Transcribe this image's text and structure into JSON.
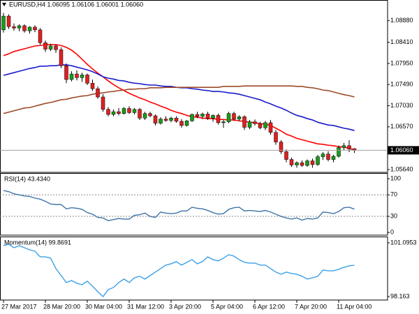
{
  "chart_data": [
    {
      "type": "candlestick",
      "title": "EURUSD,H4  1.06095 1.06106 1.06001 1.06060",
      "categories": [
        "27 Mar 2017",
        null,
        null,
        null,
        null,
        null,
        null,
        null,
        "28 Mar 20:00",
        null,
        null,
        null,
        null,
        null,
        null,
        null,
        "30 Mar 04:00",
        null,
        null,
        null,
        null,
        null,
        null,
        null,
        "31 Mar 12:00",
        null,
        null,
        null,
        null,
        null,
        null,
        null,
        "3 Apr 20:00",
        null,
        null,
        null,
        null,
        null,
        null,
        null,
        "5 Apr 04:00",
        null,
        null,
        null,
        null,
        null,
        null,
        null,
        "6 Apr 12:00",
        null,
        null,
        null,
        null,
        null,
        null,
        null,
        "7 Apr 20:00",
        null,
        null,
        null,
        null,
        null,
        null,
        null,
        "11 Apr 04:00",
        null,
        null,
        null
      ],
      "open": [
        1.0868,
        1.0898,
        1.0875,
        1.0872,
        1.0877,
        1.0866,
        1.0874,
        1.0868,
        1.084,
        1.0826,
        1.0833,
        1.0825,
        1.079,
        1.076,
        1.0772,
        1.0764,
        1.077,
        1.0752,
        1.074,
        1.0722,
        1.0695,
        1.0684,
        1.069,
        1.0686,
        1.0697,
        1.0688,
        1.0695,
        1.0676,
        1.0686,
        1.0681,
        1.0665,
        1.0674,
        1.0671,
        1.0676,
        1.0669,
        1.066,
        1.067,
        1.0684,
        1.068,
        1.0685,
        1.0676,
        1.0682,
        1.0666,
        1.0668,
        1.0686,
        1.0674,
        1.0679,
        1.0656,
        1.0668,
        1.0664,
        1.0655,
        1.0666,
        1.0645,
        1.0624,
        1.0603,
        1.0586,
        1.0574,
        1.0579,
        1.0573,
        1.0583,
        1.0575,
        1.0592,
        1.0598,
        1.0586,
        1.0593,
        1.0612,
        1.0616,
        1.06095
      ],
      "high": [
        1.0905,
        1.0902,
        1.0882,
        1.088,
        1.088,
        1.0876,
        1.0878,
        1.0872,
        1.0845,
        1.0838,
        1.0836,
        1.083,
        1.0795,
        1.0778,
        1.078,
        1.0775,
        1.0773,
        1.076,
        1.0745,
        1.0728,
        1.07,
        1.0695,
        1.0698,
        1.07,
        1.0702,
        1.0698,
        1.0698,
        1.069,
        1.069,
        1.0684,
        1.0678,
        1.068,
        1.0679,
        1.068,
        1.0674,
        1.0672,
        1.0686,
        1.069,
        1.0688,
        1.069,
        1.0684,
        1.0686,
        1.0672,
        1.069,
        1.069,
        1.0682,
        1.0682,
        1.0672,
        1.0673,
        1.0668,
        1.067,
        1.0672,
        1.065,
        1.0628,
        1.0608,
        1.059,
        1.0582,
        1.0584,
        1.0586,
        1.0588,
        1.0596,
        1.0602,
        1.0604,
        1.0596,
        1.0616,
        1.0622,
        1.0628,
        1.06106
      ],
      "low": [
        1.0862,
        1.087,
        1.0866,
        1.0865,
        1.0862,
        1.086,
        1.0863,
        1.0836,
        1.082,
        1.0822,
        1.0818,
        1.0785,
        1.0752,
        1.0756,
        1.0758,
        1.0755,
        1.0748,
        1.0735,
        1.0718,
        1.069,
        1.068,
        1.068,
        1.0682,
        1.0684,
        1.0685,
        1.0684,
        1.0672,
        1.0672,
        1.0678,
        1.066,
        1.0662,
        1.0668,
        1.0667,
        1.0666,
        1.0655,
        1.0658,
        1.0668,
        1.0676,
        1.0674,
        1.0672,
        1.0668,
        1.0662,
        1.0655,
        1.0665,
        1.067,
        1.067,
        1.065,
        1.0652,
        1.066,
        1.0652,
        1.065,
        1.064,
        1.0618,
        1.0598,
        1.058,
        1.057,
        1.0568,
        1.057,
        1.057,
        1.0568,
        1.0572,
        1.0585,
        1.0582,
        1.058,
        1.059,
        1.0606,
        1.0602,
        1.06001
      ],
      "close": [
        1.0898,
        1.0875,
        1.0872,
        1.0877,
        1.0866,
        1.0874,
        1.0868,
        1.084,
        1.0826,
        1.0833,
        1.0825,
        1.079,
        1.076,
        1.0772,
        1.0764,
        1.077,
        1.0752,
        1.074,
        1.0722,
        1.0695,
        1.0684,
        1.069,
        1.0686,
        1.0697,
        1.0688,
        1.0695,
        1.0676,
        1.0686,
        1.0681,
        1.0665,
        1.0674,
        1.0671,
        1.0676,
        1.0669,
        1.066,
        1.067,
        1.0684,
        1.068,
        1.0685,
        1.0676,
        1.0682,
        1.0666,
        1.0668,
        1.0686,
        1.0674,
        1.0679,
        1.0656,
        1.0668,
        1.0664,
        1.0655,
        1.0666,
        1.0645,
        1.0624,
        1.0603,
        1.0586,
        1.0574,
        1.0579,
        1.0573,
        1.0583,
        1.0575,
        1.0592,
        1.0598,
        1.0586,
        1.0593,
        1.0612,
        1.0616,
        1.0609,
        1.0606
      ],
      "up_color": "#1a9c1a",
      "down_color": "#e02020",
      "series": [
        {
          "color": "#ff0000",
          "values": [
            1.0812,
            1.0816,
            1.0821,
            1.0824,
            1.0827,
            1.083,
            1.0833,
            1.0834,
            1.0836,
            1.0836,
            1.0836,
            1.0834,
            1.083,
            1.0824,
            1.0815,
            1.0804,
            1.0793,
            1.0783,
            1.0774,
            1.0766,
            1.0757,
            1.0749,
            1.0742,
            1.0736,
            1.073,
            1.0725,
            1.072,
            1.0716,
            1.0711,
            1.0707,
            1.0702,
            1.0698,
            1.0693,
            1.0689,
            1.0686,
            1.0682,
            1.0679,
            1.0678,
            1.0676,
            1.0675,
            1.0675,
            1.0673,
            1.0673,
            1.0672,
            1.0672,
            1.067,
            1.0669,
            1.0667,
            1.0666,
            1.0664,
            1.0663,
            1.066,
            1.0654,
            1.0648,
            1.0641,
            1.0637,
            1.0632,
            1.0629,
            1.0626,
            1.0623,
            1.062,
            1.0619,
            1.0617,
            1.0616,
            1.0614,
            1.0613,
            1.061,
            1.0607
          ]
        },
        {
          "color": "#1a1acc",
          "values": [
            1.0769,
            1.0772,
            1.0775,
            1.0778,
            1.0781,
            1.0784,
            1.0786,
            1.0789,
            1.0789,
            1.079,
            1.079,
            1.0792,
            1.0792,
            1.079,
            1.0787,
            1.0784,
            1.0781,
            1.0777,
            1.0772,
            1.0766,
            1.0763,
            1.0761,
            1.0758,
            1.0757,
            1.0754,
            1.0752,
            1.0751,
            1.0749,
            1.0748,
            1.0748,
            1.0746,
            1.0745,
            1.0745,
            1.0743,
            1.0742,
            1.0742,
            1.074,
            1.0739,
            1.0737,
            1.0736,
            1.0734,
            1.0734,
            1.0733,
            1.0731,
            1.073,
            1.0728,
            1.0725,
            1.0722,
            1.0719,
            1.0716,
            1.0711,
            1.0707,
            1.0702,
            1.0698,
            1.0693,
            1.0687,
            1.0682,
            1.0679,
            1.0675,
            1.0672,
            1.0667,
            1.0664,
            1.0661,
            1.066,
            1.0657,
            1.0654,
            1.0652,
            1.0649
          ]
        },
        {
          "color": "#9c4a2a",
          "values": [
            1.0686,
            1.0689,
            1.0692,
            1.0695,
            1.0698,
            1.0699,
            1.0702,
            1.0705,
            1.0708,
            1.071,
            1.0713,
            1.0716,
            1.0717,
            1.072,
            1.0722,
            1.0724,
            1.0725,
            1.0728,
            1.073,
            1.0731,
            1.0733,
            1.0734,
            1.0736,
            1.0737,
            1.0739,
            1.0739,
            1.074,
            1.074,
            1.0742,
            1.0742,
            1.0742,
            1.0743,
            1.0743,
            1.0743,
            1.0743,
            1.0743,
            1.0743,
            1.0743,
            1.0743,
            1.0743,
            1.0743,
            1.0743,
            1.0745,
            1.0745,
            1.0745,
            1.0745,
            1.0746,
            1.0746,
            1.0746,
            1.0746,
            1.0746,
            1.0746,
            1.0746,
            1.0746,
            1.0746,
            1.0746,
            1.0745,
            1.0745,
            1.0743,
            1.0742,
            1.074,
            1.0737,
            1.0736,
            1.0733,
            1.073,
            1.0727,
            1.0725,
            1.0722
          ]
        }
      ],
      "ylim": [
        1.0558,
        1.093
      ],
      "yticks": [
        {
          "value": 1.0888,
          "label": "1.08880"
        },
        {
          "value": 1.0841,
          "label": "1.08410"
        },
        {
          "value": 1.0795,
          "label": "1.07950"
        },
        {
          "value": 1.0749,
          "label": "1.07490"
        },
        {
          "value": 1.0703,
          "label": "1.07030"
        },
        {
          "value": 1.0657,
          "label": "1.06570"
        },
        {
          "value": 1.0564,
          "label": "1.05640"
        }
      ],
      "current_price": {
        "value": 1.0606,
        "label": "1.06060"
      }
    },
    {
      "type": "line",
      "title": "RSI(14) 43.4340",
      "color": "#3f74a8",
      "values": [
        78,
        76,
        72,
        70,
        68,
        67,
        64,
        62,
        58,
        53,
        52,
        52,
        44,
        46,
        45,
        43,
        37,
        34,
        28,
        27,
        22,
        24,
        26,
        25,
        25,
        32,
        33,
        36,
        30,
        28,
        38,
        36,
        35,
        36,
        40,
        40,
        47,
        45,
        44,
        41,
        37,
        34,
        35,
        43,
        46,
        47,
        40,
        41,
        40,
        39,
        41,
        38,
        34,
        30,
        27,
        25,
        27,
        23,
        26,
        25,
        27,
        38,
        37,
        35,
        39,
        46,
        47,
        43.434
      ],
      "ylim": [
        -5,
        108
      ],
      "yticks": [
        100,
        70,
        30,
        0
      ],
      "levels": [
        70,
        30
      ]
    },
    {
      "type": "line",
      "title": "Momentum(14) 99.8691",
      "color": "#3aa0e8",
      "values": [
        100.94,
        101.02,
        100.83,
        100.94,
        100.83,
        100.71,
        100.64,
        100.33,
        100.33,
        100.26,
        99.69,
        99.31,
        98.93,
        99.04,
        98.89,
        98.81,
        99.0,
        98.73,
        98.43,
        98.16,
        98.54,
        98.66,
        98.93,
        99.12,
        98.93,
        99.19,
        99.27,
        99.12,
        99.31,
        99.5,
        99.69,
        99.88,
        99.95,
        100.07,
        99.88,
        100.03,
        100.18,
        99.95,
        100.07,
        100.33,
        100.18,
        100.11,
        100.26,
        100.45,
        100.37,
        100.18,
        100.03,
        99.99,
        99.99,
        99.88,
        99.88,
        99.69,
        99.5,
        99.38,
        99.5,
        99.42,
        99.38,
        99.27,
        99.12,
        99.19,
        99.27,
        99.61,
        99.57,
        99.57,
        99.65,
        99.76,
        99.84,
        99.8691
      ],
      "ylim": [
        97.973,
        101.362
      ],
      "yticks": [
        101.0953,
        98.163
      ]
    }
  ]
}
